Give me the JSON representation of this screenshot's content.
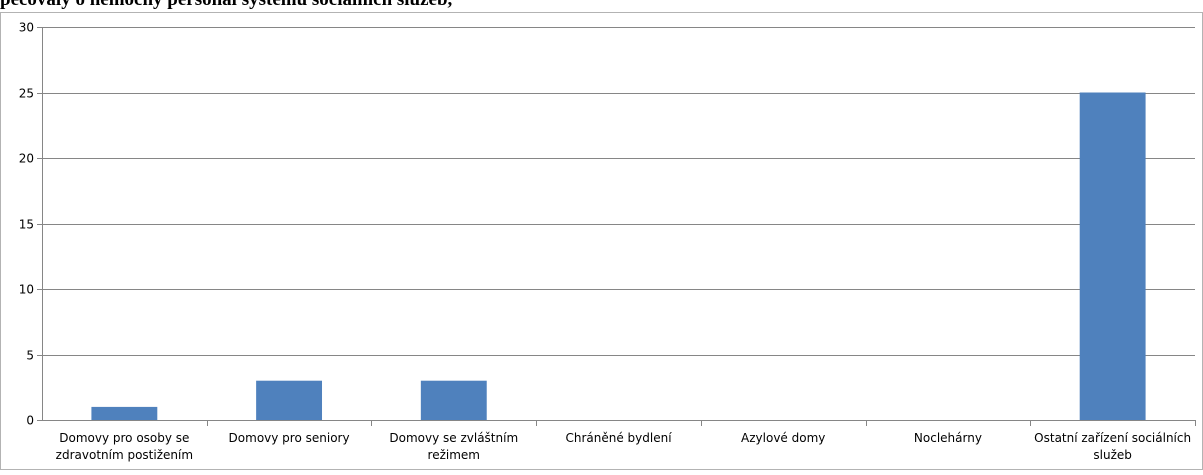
{
  "heading": {
    "text": "pečovaly o nemocný personál systému sociálních služeb,"
  },
  "chart_data": {
    "type": "bar",
    "categories": [
      [
        "Domovy pro osoby se",
        "zdravotním postižením"
      ],
      [
        "Domovy pro seniory"
      ],
      [
        "Domovy se zvláštním",
        "režimem"
      ],
      [
        "Chráněné bydlení"
      ],
      [
        "Azylové domy"
      ],
      [
        "Noclehárny"
      ],
      [
        "Ostatní zařízení sociálních",
        "služeb"
      ]
    ],
    "values": [
      1,
      3,
      3,
      0,
      0,
      0,
      25
    ],
    "yticks": [
      "0",
      "5",
      "10",
      "15",
      "20",
      "25",
      "30"
    ],
    "ylim": [
      0,
      30
    ],
    "grid": true,
    "legend": "none",
    "colors": {
      "bar": "#4f81bd",
      "grid": "#868686",
      "axis": "#868686",
      "text": "#000000"
    }
  }
}
